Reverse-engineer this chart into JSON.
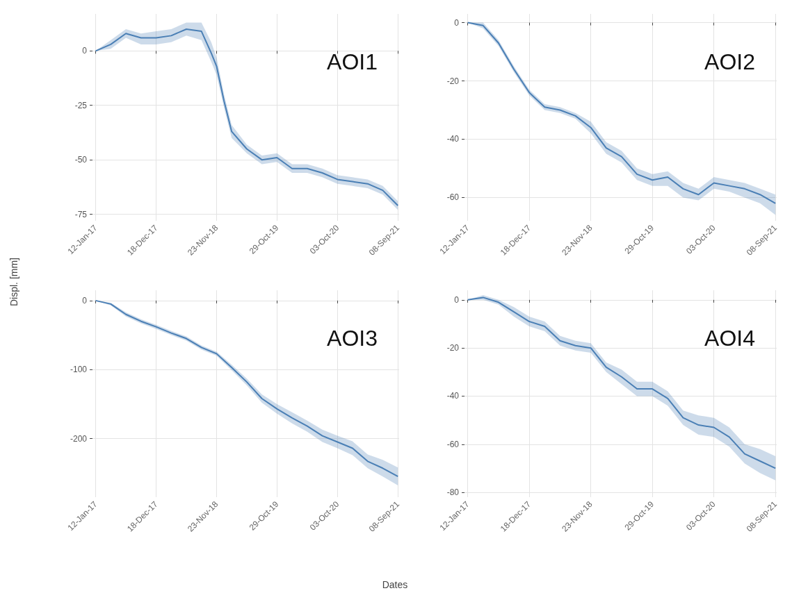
{
  "chart_data": [
    {
      "type": "line",
      "title": "AOI1",
      "ylabel": "Displ. [mm]",
      "grid": true,
      "marker": "none",
      "xlim": [
        "2016-12-25",
        "2021-09-15"
      ],
      "ylim": [
        -78,
        17
      ],
      "yticks": [
        0,
        -25,
        -50,
        -75
      ],
      "xticks": [
        {
          "value": "2017-01-12",
          "label": "12-Jan-17"
        },
        {
          "value": "2017-12-18",
          "label": "18-Dec-17"
        },
        {
          "value": "2018-11-23",
          "label": "23-Nov-18"
        },
        {
          "value": "2019-10-29",
          "label": "29-Oct-19"
        },
        {
          "value": "2020-10-03",
          "label": "03-Oct-20"
        },
        {
          "value": "2021-09-08",
          "label": "08-Sep-21"
        }
      ],
      "x": [
        "2017-01-12",
        "2017-04-07",
        "2017-07-01",
        "2017-09-24",
        "2017-12-18",
        "2018-03-13",
        "2018-06-06",
        "2018-08-30",
        "2018-10-24",
        "2018-11-23",
        "2019-01-04",
        "2019-02-16",
        "2019-05-12",
        "2019-08-05",
        "2019-10-29",
        "2020-01-22",
        "2020-04-16",
        "2020-07-10",
        "2020-10-03",
        "2020-12-27",
        "2021-03-22",
        "2021-06-15",
        "2021-09-08"
      ],
      "series": [
        {
          "color": "#4a7fb5",
          "values": [
            0,
            3,
            8,
            6,
            6,
            7,
            10,
            9,
            -1,
            -7,
            -23,
            -37,
            -45,
            -50,
            -49,
            -54,
            -54,
            -56,
            -59,
            -60,
            -61,
            -64,
            -71
          ],
          "lower": [
            0,
            1,
            6,
            3,
            3,
            4,
            7,
            5,
            -5,
            -11,
            -26,
            -40,
            -47,
            -52,
            -51,
            -56,
            -56,
            -58,
            -61,
            -62,
            -63,
            -66,
            -73
          ],
          "upper": [
            0,
            5,
            10,
            8,
            9,
            10,
            13,
            13,
            4,
            -3,
            -20,
            -34,
            -43,
            -48,
            -47,
            -52,
            -52,
            -54,
            -57,
            -58,
            -59,
            -62,
            -69
          ]
        }
      ]
    },
    {
      "type": "line",
      "title": "AOI2",
      "grid": true,
      "marker": "none",
      "xlim": [
        "2016-12-25",
        "2021-09-15"
      ],
      "ylim": [
        -68,
        3
      ],
      "yticks": [
        0,
        -20,
        -40,
        -60
      ],
      "xticks": [
        {
          "value": "2017-01-12",
          "label": "12-Jan-17"
        },
        {
          "value": "2017-12-18",
          "label": "18-Dec-17"
        },
        {
          "value": "2018-11-23",
          "label": "23-Nov-18"
        },
        {
          "value": "2019-10-29",
          "label": "29-Oct-19"
        },
        {
          "value": "2020-10-03",
          "label": "03-Oct-20"
        },
        {
          "value": "2021-09-08",
          "label": "08-Sep-21"
        }
      ],
      "x": [
        "2017-01-12",
        "2017-04-07",
        "2017-07-01",
        "2017-09-24",
        "2017-12-18",
        "2018-03-13",
        "2018-06-06",
        "2018-08-30",
        "2018-11-23",
        "2019-02-16",
        "2019-05-12",
        "2019-08-05",
        "2019-10-29",
        "2020-01-22",
        "2020-04-16",
        "2020-07-10",
        "2020-10-03",
        "2020-12-27",
        "2021-03-22",
        "2021-06-15",
        "2021-09-08"
      ],
      "series": [
        {
          "color": "#4a7fb5",
          "values": [
            0,
            -1,
            -7,
            -16,
            -24,
            -29,
            -30,
            -32,
            -36,
            -43,
            -46,
            -52,
            -54,
            -53,
            -57,
            -59,
            -55,
            -56,
            -57,
            -59,
            -62
          ],
          "lower": [
            0,
            -2,
            -8,
            -17,
            -25,
            -30,
            -31,
            -33,
            -38,
            -45,
            -48,
            -54,
            -56,
            -56,
            -60,
            -61,
            -57,
            -58,
            -60,
            -62,
            -66
          ],
          "upper": [
            0,
            0,
            -6,
            -15,
            -23,
            -28,
            -29,
            -31,
            -34,
            -41,
            -44,
            -50,
            -52,
            -51,
            -55,
            -57,
            -53,
            -54,
            -55,
            -57,
            -59
          ]
        }
      ]
    },
    {
      "type": "line",
      "title": "AOI3",
      "xlabel": "Dates",
      "grid": true,
      "marker": "none",
      "xlim": [
        "2016-12-25",
        "2021-09-15"
      ],
      "ylim": [
        -285,
        15
      ],
      "yticks": [
        0,
        -100,
        -200
      ],
      "xticks": [
        {
          "value": "2017-01-12",
          "label": "12-Jan-17"
        },
        {
          "value": "2017-12-18",
          "label": "18-Dec-17"
        },
        {
          "value": "2018-11-23",
          "label": "23-Nov-18"
        },
        {
          "value": "2019-10-29",
          "label": "29-Oct-19"
        },
        {
          "value": "2020-10-03",
          "label": "03-Oct-20"
        },
        {
          "value": "2021-09-08",
          "label": "08-Sep-21"
        }
      ],
      "x": [
        "2017-01-12",
        "2017-04-07",
        "2017-07-01",
        "2017-09-24",
        "2017-12-18",
        "2018-03-13",
        "2018-06-06",
        "2018-08-30",
        "2018-11-23",
        "2019-02-16",
        "2019-05-12",
        "2019-08-05",
        "2019-10-29",
        "2020-01-22",
        "2020-04-16",
        "2020-07-10",
        "2020-10-03",
        "2020-12-27",
        "2021-03-22",
        "2021-06-15",
        "2021-09-08"
      ],
      "series": [
        {
          "color": "#4a7fb5",
          "values": [
            0,
            -5,
            -20,
            -30,
            -38,
            -47,
            -55,
            -68,
            -77,
            -97,
            -118,
            -142,
            -157,
            -170,
            -182,
            -196,
            -205,
            -214,
            -233,
            -243,
            -255
          ],
          "lower": [
            0,
            -7,
            -23,
            -33,
            -41,
            -50,
            -58,
            -71,
            -80,
            -101,
            -123,
            -148,
            -164,
            -178,
            -190,
            -205,
            -214,
            -224,
            -243,
            -255,
            -268
          ],
          "upper": [
            0,
            -3,
            -17,
            -27,
            -35,
            -44,
            -52,
            -65,
            -74,
            -93,
            -113,
            -136,
            -150,
            -162,
            -174,
            -187,
            -196,
            -204,
            -223,
            -231,
            -242
          ]
        }
      ]
    },
    {
      "type": "line",
      "title": "AOI4",
      "grid": true,
      "marker": "none",
      "xlim": [
        "2016-12-25",
        "2021-09-15"
      ],
      "ylim": [
        -82,
        4
      ],
      "yticks": [
        0,
        -20,
        -40,
        -60,
        -80
      ],
      "xticks": [
        {
          "value": "2017-01-12",
          "label": "12-Jan-17"
        },
        {
          "value": "2017-12-18",
          "label": "18-Dec-17"
        },
        {
          "value": "2018-11-23",
          "label": "23-Nov-18"
        },
        {
          "value": "2019-10-29",
          "label": "29-Oct-19"
        },
        {
          "value": "2020-10-03",
          "label": "03-Oct-20"
        },
        {
          "value": "2021-09-08",
          "label": "08-Sep-21"
        }
      ],
      "x": [
        "2017-01-12",
        "2017-04-07",
        "2017-07-01",
        "2017-09-24",
        "2017-12-18",
        "2018-03-13",
        "2018-06-06",
        "2018-08-30",
        "2018-11-23",
        "2019-02-16",
        "2019-05-12",
        "2019-08-05",
        "2019-10-29",
        "2020-01-22",
        "2020-04-16",
        "2020-07-10",
        "2020-10-03",
        "2020-12-27",
        "2021-03-22",
        "2021-06-15",
        "2021-09-08"
      ],
      "series": [
        {
          "color": "#4a7fb5",
          "values": [
            0,
            1,
            -1,
            -5,
            -9,
            -11,
            -17,
            -19,
            -20,
            -28,
            -32,
            -37,
            -37,
            -41,
            -49,
            -52,
            -53,
            -57,
            -64,
            -67,
            -70
          ],
          "lower": [
            0,
            0,
            -2,
            -7,
            -11,
            -13,
            -19,
            -21,
            -22,
            -30,
            -35,
            -40,
            -40,
            -44,
            -52,
            -56,
            -57,
            -61,
            -68,
            -72,
            -75
          ],
          "upper": [
            0,
            2,
            0,
            -3,
            -7,
            -9,
            -15,
            -17,
            -18,
            -26,
            -29,
            -34,
            -34,
            -38,
            -46,
            -48,
            -49,
            -53,
            -60,
            -62,
            -65
          ]
        }
      ]
    }
  ]
}
